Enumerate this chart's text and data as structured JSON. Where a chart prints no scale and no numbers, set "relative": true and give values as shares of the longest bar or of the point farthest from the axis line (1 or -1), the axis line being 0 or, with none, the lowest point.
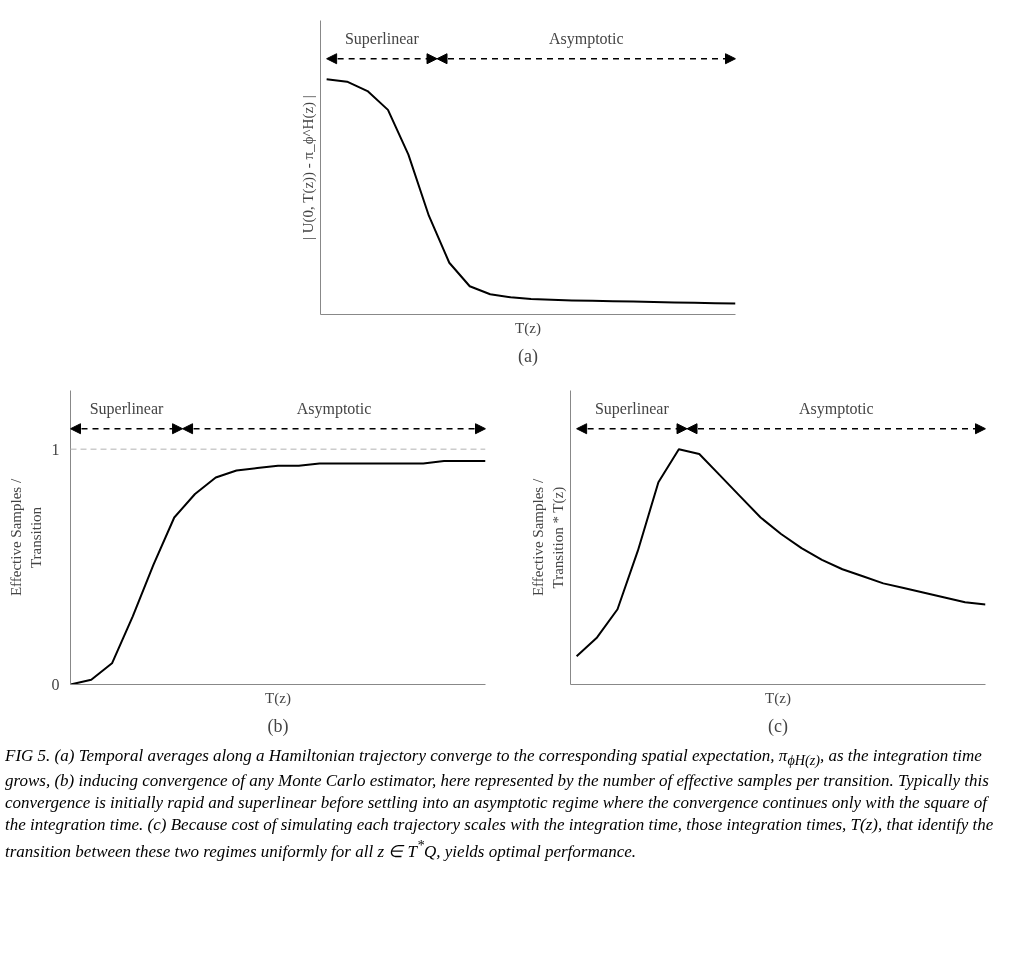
{
  "chart_data": [
    {
      "type": "line",
      "title": "(a)",
      "xlabel": "T(z)",
      "ylabel": "| U(0, T(z)) - π_ϕ^H(z) |",
      "relative": true,
      "categories": [
        null,
        null,
        null,
        null,
        null,
        null,
        null,
        null,
        null,
        null,
        null,
        null,
        null,
        null,
        null,
        null,
        null,
        null,
        null,
        null,
        null
      ],
      "annotations": [
        "Superlinear",
        "Asymptotic"
      ],
      "series": [
        {
          "color": "#000000",
          "values": [
            1.0,
            0.99,
            0.95,
            0.87,
            0.68,
            0.42,
            0.22,
            0.12,
            0.086,
            0.073,
            0.066,
            0.063,
            0.06,
            0.058,
            0.056,
            0.055,
            0.053,
            0.051,
            0.05,
            0.048,
            0.047
          ]
        }
      ]
    },
    {
      "type": "line",
      "title": "(b)",
      "xlabel": "T(z)",
      "ylabel": "Effective Samples /\nTransition",
      "ylim": [
        0,
        1.25
      ],
      "yticks": [
        0,
        1
      ],
      "categories": [
        null,
        null,
        null,
        null,
        null,
        null,
        null,
        null,
        null,
        null,
        null,
        null,
        null,
        null,
        null,
        null,
        null,
        null,
        null,
        null,
        null
      ],
      "annotations": [
        "Superlinear",
        "Asymptotic"
      ],
      "ref_lines": [
        {
          "axis": "y",
          "value": 1,
          "color": "#cccccc",
          "line_style": "dashed"
        }
      ],
      "series": [
        {
          "color": "#000000",
          "values": [
            0,
            0.02,
            0.09,
            0.29,
            0.51,
            0.71,
            0.81,
            0.88,
            0.91,
            0.92,
            0.93,
            0.93,
            0.94,
            0.94,
            0.94,
            0.94,
            0.94,
            0.94,
            0.95,
            0.95,
            0.95
          ]
        }
      ]
    },
    {
      "type": "line",
      "title": "(c)",
      "xlabel": "T(z)",
      "ylabel": "Effective Samples /\nTransition * T(z)",
      "relative": true,
      "categories": [
        null,
        null,
        null,
        null,
        null,
        null,
        null,
        null,
        null,
        null,
        null,
        null,
        null,
        null,
        null,
        null,
        null,
        null,
        null,
        null,
        null
      ],
      "annotations": [
        "Superlinear",
        "Asymptotic",
        "FIG 5. (a) Temporal averages along a Hamiltonian trajectory converge to the corresponding spatial expectation, π$_{ϕH(z)}$, as the integration time grows, (b) inducing convergence of any Monte Carlo estimator, here represented by the number of effective samples per transition. Typically this convergence is initially rapid and superlinear before settling into an asymptotic regime where the convergence continues only with the square of the integration time. (c) Because cost of simulating each trajectory scales with the integration time, those integration times, T(z), that identify the transition between these two regimes uniformly for all z ∈ T$^{*}$Q, yields optimal performance."
      ],
      "series": [
        {
          "color": "#000000",
          "values": [
            0.12,
            0.2,
            0.32,
            0.57,
            0.86,
            1.0,
            0.98,
            0.89,
            0.8,
            0.71,
            0.64,
            0.58,
            0.53,
            0.49,
            0.46,
            0.43,
            0.41,
            0.39,
            0.37,
            0.35,
            0.34
          ]
        }
      ]
    }
  ]
}
